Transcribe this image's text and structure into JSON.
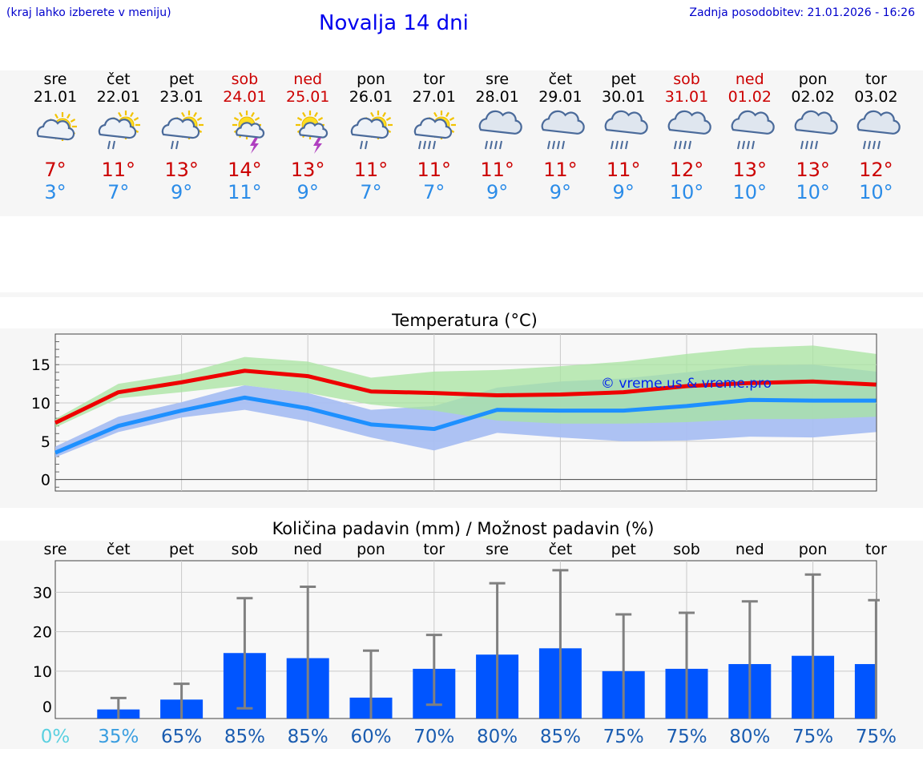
{
  "header": {
    "hint": "(kraj lahko izberete v meniju)",
    "title": "Novalja 14 dni",
    "updated": "Zadnja posodobitev: 21.01.2026 - 16:26"
  },
  "days": [
    {
      "name": "sre",
      "date": "21.01",
      "weekend": false,
      "icon": "partly-cloudy-icon",
      "tmax": "7°",
      "tmin": "3°"
    },
    {
      "name": "čet",
      "date": "22.01",
      "weekend": false,
      "icon": "sun-cloud-rain-icon",
      "tmax": "11°",
      "tmin": "7°"
    },
    {
      "name": "pet",
      "date": "23.01",
      "weekend": false,
      "icon": "sun-cloud-rain-icon",
      "tmax": "13°",
      "tmin": "9°"
    },
    {
      "name": "sob",
      "date": "24.01",
      "weekend": true,
      "icon": "sun-cloud-thunder-icon",
      "tmax": "14°",
      "tmin": "11°"
    },
    {
      "name": "ned",
      "date": "25.01",
      "weekend": true,
      "icon": "sun-cloud-thunder-icon",
      "tmax": "13°",
      "tmin": "9°"
    },
    {
      "name": "pon",
      "date": "26.01",
      "weekend": false,
      "icon": "sun-cloud-rain-icon",
      "tmax": "11°",
      "tmin": "7°"
    },
    {
      "name": "tor",
      "date": "27.01",
      "weekend": false,
      "icon": "sun-cloud-heavy-rain-icon",
      "tmax": "11°",
      "tmin": "7°"
    },
    {
      "name": "sre",
      "date": "28.01",
      "weekend": false,
      "icon": "cloud-heavy-rain-icon",
      "tmax": "11°",
      "tmin": "9°"
    },
    {
      "name": "čet",
      "date": "29.01",
      "weekend": false,
      "icon": "cloud-heavy-rain-icon",
      "tmax": "11°",
      "tmin": "9°"
    },
    {
      "name": "pet",
      "date": "30.01",
      "weekend": false,
      "icon": "cloud-heavy-rain-icon",
      "tmax": "11°",
      "tmin": "9°"
    },
    {
      "name": "sob",
      "date": "31.01",
      "weekend": true,
      "icon": "cloud-heavy-rain-icon",
      "tmax": "12°",
      "tmin": "10°"
    },
    {
      "name": "ned",
      "date": "01.02",
      "weekend": true,
      "icon": "cloud-heavy-rain-icon",
      "tmax": "13°",
      "tmin": "10°"
    },
    {
      "name": "pon",
      "date": "02.02",
      "weekend": false,
      "icon": "cloud-heavy-rain-icon",
      "tmax": "13°",
      "tmin": "10°"
    },
    {
      "name": "tor",
      "date": "03.02",
      "weekend": false,
      "icon": "cloud-heavy-rain-icon",
      "tmax": "12°",
      "tmin": "10°"
    }
  ],
  "colors": {
    "max": "#ee0000",
    "min": "#1e90ff",
    "maxBand": "#a8e4a0",
    "minBand": "#a9bff2",
    "overlap": "#7ab8a5",
    "bar": "#0055ff",
    "err": "#808080",
    "weekend": "#cc0000",
    "tmin": "#2b8ce8"
  },
  "chart_data": [
    {
      "type": "line",
      "title": "Temperatura (°C)",
      "watermark": "© vreme.us & vreme.pro",
      "ylim": [
        -1.5,
        19
      ],
      "yticks": [
        0,
        5,
        10,
        15
      ],
      "x": [
        0,
        1,
        2,
        3,
        4,
        5,
        6,
        7,
        8,
        9,
        10,
        11,
        12,
        13
      ],
      "series": [
        {
          "name": "max",
          "values": [
            7.4,
            11.4,
            12.7,
            14.2,
            13.5,
            11.5,
            11.3,
            11.0,
            11.1,
            11.4,
            12.2,
            12.6,
            12.8,
            12.4
          ]
        },
        {
          "name": "min",
          "values": [
            3.5,
            7.0,
            9.0,
            10.7,
            9.3,
            7.2,
            6.6,
            9.1,
            9.0,
            9.0,
            9.6,
            10.4,
            10.3,
            10.3
          ]
        }
      ],
      "bands": [
        {
          "name": "max-range",
          "low": [
            6.8,
            10.6,
            11.4,
            12.3,
            11.3,
            9.8,
            9.0,
            7.7,
            7.3,
            7.3,
            7.5,
            7.9,
            7.9,
            8.2
          ],
          "high": [
            7.9,
            12.5,
            13.8,
            16.0,
            15.4,
            13.3,
            14.1,
            14.3,
            14.8,
            15.4,
            16.4,
            17.2,
            17.5,
            16.4
          ]
        },
        {
          "name": "min-range",
          "low": [
            2.9,
            6.2,
            8.1,
            9.1,
            7.6,
            5.5,
            3.8,
            6.1,
            5.5,
            5.0,
            5.1,
            5.6,
            5.5,
            6.2
          ],
          "high": [
            4.3,
            8.2,
            10.1,
            12.3,
            11.3,
            9.1,
            9.6,
            12.0,
            12.8,
            13.2,
            14.0,
            14.9,
            15.0,
            14.1
          ]
        }
      ]
    },
    {
      "type": "bar",
      "title": "Količina padavin (mm) / Možnost padavin (%)",
      "ylim": [
        -2,
        38
      ],
      "yticks": [
        0,
        10,
        20,
        30
      ],
      "categories": [
        "sre",
        "čet",
        "pet",
        "sob",
        "ned",
        "pon",
        "tor",
        "sre",
        "čet",
        "pet",
        "sob",
        "ned",
        "pon",
        "tor"
      ],
      "values": [
        0,
        0.3,
        2.8,
        14.6,
        13.3,
        3.3,
        10.6,
        14.2,
        15.8,
        10.0,
        10.6,
        11.8,
        13.9,
        11.8
      ],
      "err_low": [
        0,
        0,
        0,
        0.6,
        0,
        0,
        1.5,
        0,
        0,
        0,
        0,
        0,
        0,
        0
      ],
      "err_high": [
        0,
        3.2,
        6.8,
        28.5,
        31.4,
        15.2,
        19.2,
        32.3,
        35.6,
        24.4,
        24.8,
        27.7,
        34.5,
        28.0
      ],
      "probabilities": [
        "0%",
        "35%",
        "65%",
        "85%",
        "85%",
        "60%",
        "70%",
        "80%",
        "85%",
        "75%",
        "75%",
        "80%",
        "75%",
        "75%"
      ]
    }
  ]
}
